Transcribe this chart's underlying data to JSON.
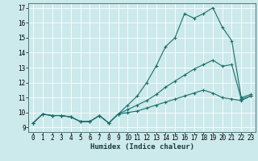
{
  "title": "",
  "xlabel": "Humidex (Indice chaleur)",
  "xlim": [
    -0.5,
    23.5
  ],
  "ylim": [
    8.7,
    17.3
  ],
  "yticks": [
    9,
    10,
    11,
    12,
    13,
    14,
    15,
    16,
    17
  ],
  "xticks": [
    0,
    1,
    2,
    3,
    4,
    5,
    6,
    7,
    8,
    9,
    10,
    11,
    12,
    13,
    14,
    15,
    16,
    17,
    18,
    19,
    20,
    21,
    22,
    23
  ],
  "bg_color": "#cce9ec",
  "grid_color": "#ffffff",
  "line_color": "#1a6e6a",
  "line1_x": [
    0,
    1,
    2,
    3,
    4,
    5,
    6,
    7,
    8,
    9,
    10,
    11,
    12,
    13,
    14,
    15,
    16,
    17,
    18,
    19,
    20,
    21,
    22,
    23
  ],
  "line1_y": [
    9.3,
    9.9,
    9.8,
    9.8,
    9.7,
    9.4,
    9.4,
    9.8,
    9.3,
    9.9,
    10.5,
    11.1,
    12.0,
    13.1,
    14.4,
    15.0,
    16.6,
    16.3,
    16.6,
    17.0,
    15.7,
    14.8,
    11.0,
    11.2
  ],
  "line2_x": [
    0,
    1,
    2,
    3,
    4,
    5,
    6,
    7,
    8,
    9,
    10,
    11,
    12,
    13,
    14,
    15,
    16,
    17,
    18,
    19,
    20,
    21,
    22,
    23
  ],
  "line2_y": [
    9.3,
    9.9,
    9.8,
    9.8,
    9.7,
    9.4,
    9.4,
    9.8,
    9.3,
    9.9,
    10.2,
    10.5,
    10.8,
    11.2,
    11.7,
    12.1,
    12.5,
    12.9,
    13.2,
    13.5,
    13.1,
    13.2,
    10.9,
    11.1
  ],
  "line3_x": [
    0,
    1,
    2,
    3,
    4,
    5,
    6,
    7,
    8,
    9,
    10,
    11,
    12,
    13,
    14,
    15,
    16,
    17,
    18,
    19,
    20,
    21,
    22,
    23
  ],
  "line3_y": [
    9.3,
    9.9,
    9.8,
    9.8,
    9.7,
    9.4,
    9.4,
    9.8,
    9.3,
    9.9,
    10.0,
    10.1,
    10.3,
    10.5,
    10.7,
    10.9,
    11.1,
    11.3,
    11.5,
    11.3,
    11.0,
    10.9,
    10.8,
    11.1
  ],
  "marker": "+",
  "marker_size": 3.5,
  "linewidth": 0.8,
  "font_size_label": 6.5,
  "font_size_tick": 5.5
}
